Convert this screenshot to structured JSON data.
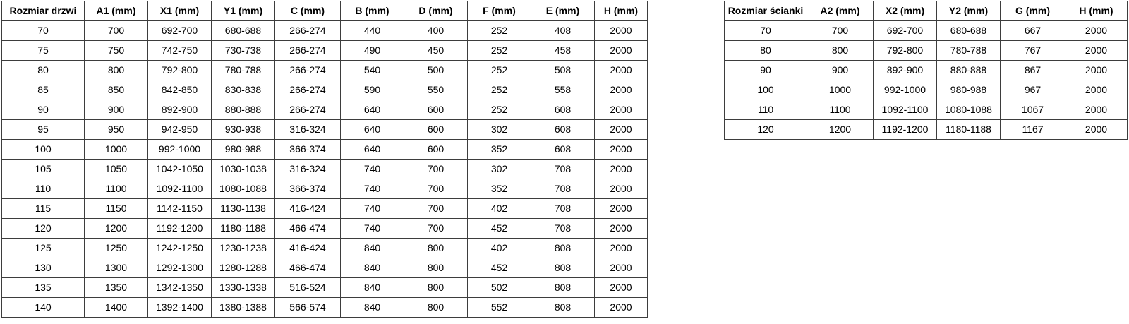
{
  "colors": {
    "background": "#ffffff",
    "border": "#3d3d3d",
    "text": "#000000"
  },
  "tables": {
    "door": {
      "title": "Rozmiar drzwi",
      "headers": [
        "Rozmiar drzwi",
        "A1 (mm)",
        "X1 (mm)",
        "Y1 (mm)",
        "C (mm)",
        "B (mm)",
        "D (mm)",
        "F (mm)",
        "E (mm)",
        "H (mm)"
      ],
      "rows": [
        [
          "70",
          "700",
          "692-700",
          "680-688",
          "266-274",
          "440",
          "400",
          "252",
          "408",
          "2000"
        ],
        [
          "75",
          "750",
          "742-750",
          "730-738",
          "266-274",
          "490",
          "450",
          "252",
          "458",
          "2000"
        ],
        [
          "80",
          "800",
          "792-800",
          "780-788",
          "266-274",
          "540",
          "500",
          "252",
          "508",
          "2000"
        ],
        [
          "85",
          "850",
          "842-850",
          "830-838",
          "266-274",
          "590",
          "550",
          "252",
          "558",
          "2000"
        ],
        [
          "90",
          "900",
          "892-900",
          "880-888",
          "266-274",
          "640",
          "600",
          "252",
          "608",
          "2000"
        ],
        [
          "95",
          "950",
          "942-950",
          "930-938",
          "316-324",
          "640",
          "600",
          "302",
          "608",
          "2000"
        ],
        [
          "100",
          "1000",
          "992-1000",
          "980-988",
          "366-374",
          "640",
          "600",
          "352",
          "608",
          "2000"
        ],
        [
          "105",
          "1050",
          "1042-1050",
          "1030-1038",
          "316-324",
          "740",
          "700",
          "302",
          "708",
          "2000"
        ],
        [
          "110",
          "1100",
          "1092-1100",
          "1080-1088",
          "366-374",
          "740",
          "700",
          "352",
          "708",
          "2000"
        ],
        [
          "115",
          "1150",
          "1142-1150",
          "1130-1138",
          "416-424",
          "740",
          "700",
          "402",
          "708",
          "2000"
        ],
        [
          "120",
          "1200",
          "1192-1200",
          "1180-1188",
          "466-474",
          "740",
          "700",
          "452",
          "708",
          "2000"
        ],
        [
          "125",
          "1250",
          "1242-1250",
          "1230-1238",
          "416-424",
          "840",
          "800",
          "402",
          "808",
          "2000"
        ],
        [
          "130",
          "1300",
          "1292-1300",
          "1280-1288",
          "466-474",
          "840",
          "800",
          "452",
          "808",
          "2000"
        ],
        [
          "135",
          "1350",
          "1342-1350",
          "1330-1338",
          "516-524",
          "840",
          "800",
          "502",
          "808",
          "2000"
        ],
        [
          "140",
          "1400",
          "1392-1400",
          "1380-1388",
          "566-574",
          "840",
          "800",
          "552",
          "808",
          "2000"
        ]
      ]
    },
    "wall": {
      "title": "Rozmiar ścianki",
      "headers": [
        "Rozmiar ścianki",
        "A2 (mm)",
        "X2 (mm)",
        "Y2 (mm)",
        "G (mm)",
        "H (mm)"
      ],
      "rows": [
        [
          "70",
          "700",
          "692-700",
          "680-688",
          "667",
          "2000"
        ],
        [
          "80",
          "800",
          "792-800",
          "780-788",
          "767",
          "2000"
        ],
        [
          "90",
          "900",
          "892-900",
          "880-888",
          "867",
          "2000"
        ],
        [
          "100",
          "1000",
          "992-1000",
          "980-988",
          "967",
          "2000"
        ],
        [
          "110",
          "1100",
          "1092-1100",
          "1080-1088",
          "1067",
          "2000"
        ],
        [
          "120",
          "1200",
          "1192-1200",
          "1180-1188",
          "1167",
          "2000"
        ]
      ]
    }
  }
}
